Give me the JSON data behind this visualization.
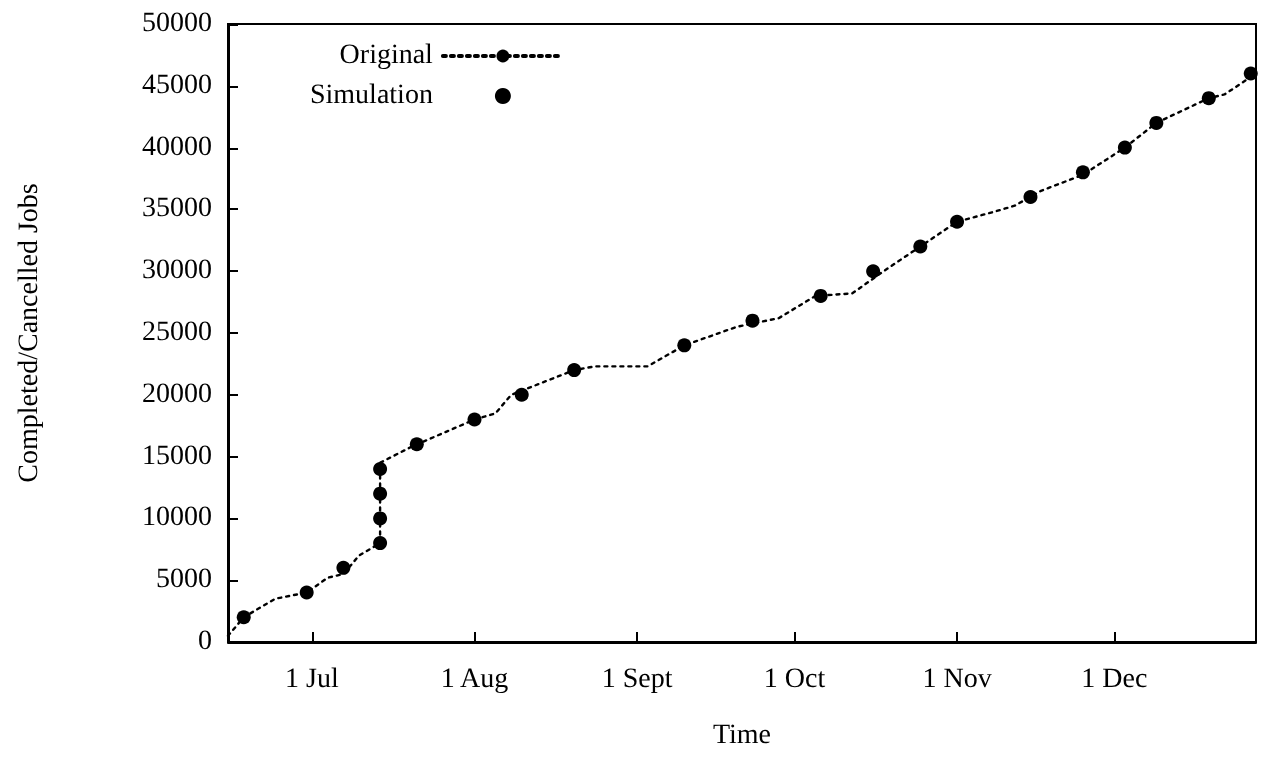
{
  "chart_data": {
    "type": "line",
    "xlabel": "Time",
    "ylabel": "Completed/Cancelled Jobs",
    "xlim": [
      "--06-15",
      "--12-28"
    ],
    "xticks": [
      {
        "value": "--07-01",
        "label": "1 Jul"
      },
      {
        "value": "--08-01",
        "label": "1 Aug"
      },
      {
        "value": "--09-01",
        "label": "1 Sept"
      },
      {
        "value": "--10-01",
        "label": "1 Oct"
      },
      {
        "value": "--11-01",
        "label": "1 Nov"
      },
      {
        "value": "--12-01",
        "label": "1 Dec"
      }
    ],
    "ylim": [
      0,
      50000
    ],
    "yticks": [
      0,
      5000,
      10000,
      15000,
      20000,
      25000,
      30000,
      35000,
      40000,
      45000,
      50000
    ],
    "grid": false,
    "legend": "top left",
    "series": [
      {
        "name": "Original",
        "color": "#000000",
        "line_style": "dotted",
        "marker": "none",
        "x": [
          "--06-15",
          "--06-18",
          "--06-24",
          "--06-30",
          "--07-04",
          "--07-07",
          "--07-10",
          "--07-14",
          "--07-14",
          "--07-20",
          "--08-01",
          "--08-05",
          "--08-08",
          "--08-20",
          "--08-24",
          "--09-03",
          "--09-10",
          "--09-20",
          "--09-28",
          "--10-05",
          "--10-12",
          "--10-18",
          "--10-25",
          "--11-01",
          "--11-08",
          "--11-12",
          "--11-17",
          "--11-25",
          "--12-03",
          "--12-09",
          "--12-19",
          "--12-22",
          "--12-28"
        ],
        "values": [
          500,
          2000,
          3500,
          4000,
          5200,
          5500,
          7000,
          8000,
          14500,
          15800,
          18000,
          18500,
          20000,
          22000,
          22300,
          22300,
          24000,
          25500,
          26200,
          28000,
          28200,
          30000,
          32000,
          34000,
          34800,
          35300,
          36500,
          37800,
          40000,
          42000,
          44000,
          44300,
          46000
        ]
      },
      {
        "name": "Simulation",
        "type": "scatter",
        "color": "#000000",
        "marker": "circle",
        "x": [
          "--06-18",
          "--06-30",
          "--07-07",
          "--07-14",
          "--07-14",
          "--07-14",
          "--07-14",
          "--07-21",
          "--08-01",
          "--08-10",
          "--08-20",
          "--09-10",
          "--09-23",
          "--10-06",
          "--10-16",
          "--10-25",
          "--11-01",
          "--11-15",
          "--11-25",
          "--12-03",
          "--12-09",
          "--12-19",
          "--12-27"
        ],
        "values": [
          2000,
          4000,
          6000,
          8000,
          10000,
          12000,
          14000,
          16000,
          18000,
          20000,
          22000,
          24000,
          26000,
          28000,
          30000,
          32000,
          34000,
          36000,
          38000,
          40000,
          42000,
          44000,
          46000
        ]
      }
    ]
  }
}
